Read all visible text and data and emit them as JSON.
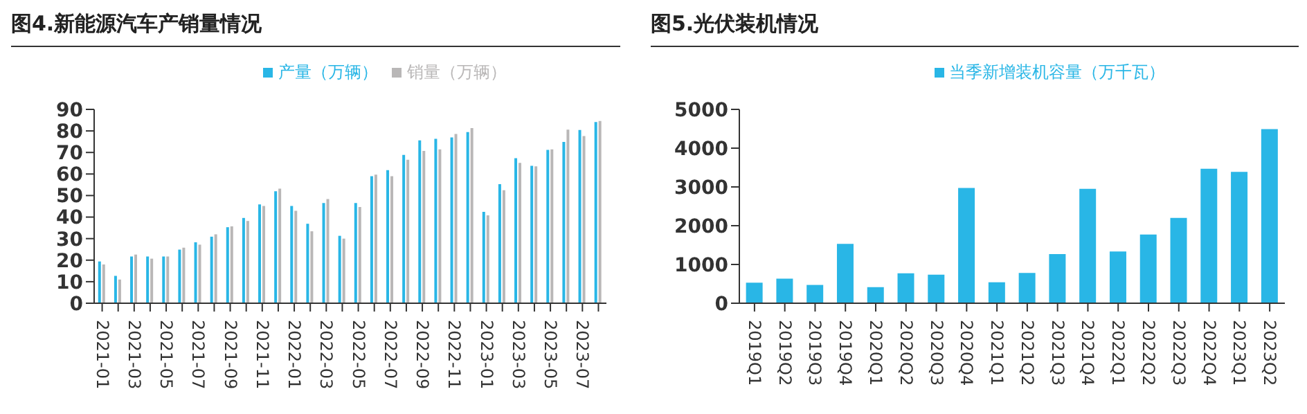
{
  "chart_data": [
    {
      "type": "bar",
      "title": "图4.新能源汽车产销量情况",
      "categories": [
        "2021-01",
        null,
        "2021-03",
        null,
        "2021-05",
        null,
        "2021-07",
        null,
        "2021-09",
        null,
        "2021-11",
        null,
        "2022-01",
        null,
        "2022-03",
        null,
        "2022-05",
        null,
        "2022-07",
        null,
        "2022-09",
        null,
        "2022-11",
        null,
        "2023-01",
        null,
        "2023-03",
        null,
        "2023-05",
        null,
        "2023-07",
        null
      ],
      "series": [
        {
          "name": "产量（万辆）",
          "color": "#29b6e6",
          "values": [
            19.4,
            12.7,
            21.7,
            21.7,
            21.7,
            24.9,
            28.3,
            30.9,
            35.3,
            39.6,
            45.9,
            52,
            45.2,
            36.9,
            46.5,
            31.3,
            46.5,
            59,
            61.8,
            68.9,
            75.6,
            76.3,
            77,
            79.5,
            42.4,
            55.3,
            67.3,
            63.8,
            71.2,
            74.9,
            80.4,
            84.1
          ]
        },
        {
          "name": "销量（万辆）",
          "color": "#b9b7b7",
          "values": [
            18,
            11,
            22.6,
            20.7,
            21.7,
            25.8,
            27.2,
            32,
            35.7,
            38.2,
            45.2,
            53.2,
            42.9,
            33.4,
            48.4,
            30,
            44.7,
            59.7,
            59,
            66.6,
            70.7,
            71.4,
            78.6,
            81.3,
            40.8,
            52.5,
            65.2,
            63.6,
            71.4,
            80.6,
            77.6,
            84.6
          ]
        }
      ],
      "ylim": [
        0,
        90
      ],
      "yticks": [
        0,
        10,
        20,
        30,
        40,
        50,
        60,
        70,
        80,
        90
      ],
      "legend": "top"
    },
    {
      "type": "bar",
      "title": "图5.光伏装机情况",
      "categories": [
        "2019Q1",
        "2019Q2",
        "2019Q3",
        "2019Q4",
        "2020Q1",
        "2020Q2",
        "2020Q3",
        "2020Q4",
        "2021Q1",
        "2021Q2",
        "2021Q3",
        "2021Q4",
        "2022Q1",
        "2022Q2",
        "2022Q3",
        "2022Q4",
        "2023Q1",
        "2023Q2"
      ],
      "series": [
        {
          "name": "当季新增装机容量（万千瓦）",
          "color": "#29b6e6",
          "values": [
            530,
            634,
            472,
            1532,
            415,
            772,
            737,
            2972,
            541,
            783,
            1270,
            2950,
            1336,
            1774,
            2200,
            3468,
            3387,
            4493
          ]
        }
      ],
      "ylim": [
        0,
        5000
      ],
      "yticks": [
        0,
        1000,
        2000,
        3000,
        4000,
        5000
      ],
      "legend": "top"
    }
  ]
}
